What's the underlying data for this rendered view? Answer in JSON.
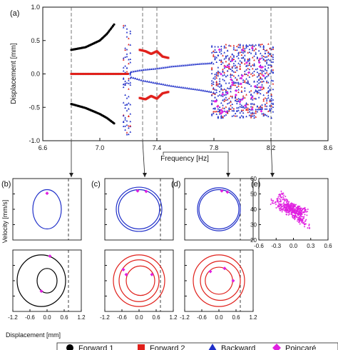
{
  "figure": {
    "panel_labels": [
      "(a)",
      "(b)",
      "(c)",
      "(d)",
      "(e)"
    ],
    "shared_xlabel": "Displacement [mm]",
    "shared_ylabel": "Velocity [mm/s]"
  },
  "legend": {
    "items": [
      {
        "label": "Forward 1",
        "marker": "circle",
        "color": "#000000"
      },
      {
        "label": "Forward 2",
        "marker": "square",
        "color": "#e0201b"
      },
      {
        "label": "Backward",
        "marker": "triangle",
        "color": "#1f2fc9"
      },
      {
        "label": "Poincaré",
        "marker": "diamond",
        "color": "#e020e0"
      }
    ]
  },
  "colors": {
    "forward1": "#000000",
    "forward2": "#e0201b",
    "backward": "#1f2fc9",
    "poincare": "#e020e0",
    "guide": "#555555"
  },
  "chart_data": [
    {
      "panel": "(a)",
      "type": "scatter",
      "title": "",
      "xlabel": "Frequency [Hz]",
      "ylabel": "Displacement [mm]",
      "xlim": [
        6.6,
        8.6
      ],
      "ylim": [
        -1.0,
        1.0
      ],
      "xticks": [
        "6.6",
        "7.0",
        "7.4",
        "7.8",
        "8.2",
        "8.6"
      ],
      "yticks": [
        "1.0",
        "0.5",
        "0.0",
        "-0.5",
        "-1.0"
      ],
      "guide_lines_hz": [
        6.8,
        7.3,
        7.4,
        8.2
      ],
      "series": [
        {
          "name": "Forward 1",
          "segments": [
            {
              "x": [
                6.8,
                6.9,
                7.0,
                7.05,
                7.1
              ],
              "y": [
                0.36,
                0.4,
                0.5,
                0.6,
                0.74
              ]
            },
            {
              "x": [
                6.8,
                6.9,
                7.0,
                7.05,
                7.1
              ],
              "y": [
                -0.45,
                -0.51,
                -0.6,
                -0.66,
                -0.74
              ]
            },
            {
              "x": [
                6.8,
                7.15
              ],
              "y": [
                0.0,
                0.0
              ]
            }
          ]
        },
        {
          "name": "Forward 2",
          "segments": [
            {
              "x": [
                7.28,
                7.32,
                7.36,
                7.4,
                7.44,
                7.48
              ],
              "y": [
                0.36,
                0.34,
                0.3,
                0.34,
                0.26,
                0.24
              ]
            },
            {
              "x": [
                7.28,
                7.32,
                7.36,
                7.4,
                7.44,
                7.48
              ],
              "y": [
                -0.36,
                -0.38,
                -0.33,
                -0.37,
                -0.29,
                -0.27
              ]
            }
          ]
        },
        {
          "name": "Backward",
          "segments": [
            {
              "x": [
                7.22,
                7.3,
                7.4,
                7.5,
                7.6,
                7.7,
                7.78
              ],
              "y": [
                0.03,
                0.06,
                0.08,
                0.11,
                0.13,
                0.15,
                0.16
              ]
            },
            {
              "x": [
                7.22,
                7.3,
                7.4,
                7.5,
                7.6,
                7.7,
                7.78
              ],
              "y": [
                -0.05,
                -0.1,
                -0.14,
                -0.18,
                -0.21,
                -0.24,
                -0.27
              ]
            }
          ],
          "bands": [
            {
              "x_range": [
                7.16,
                7.22
              ],
              "y_range": [
                -0.92,
                0.8
              ]
            },
            {
              "x_range": [
                7.78,
                8.22
              ],
              "y_range": [
                -0.66,
                0.45
              ]
            }
          ]
        }
      ]
    },
    {
      "panel": "(b)",
      "type": "line",
      "xlim": [
        -1.2,
        1.2
      ],
      "xticks": [
        "-1.2",
        "-0.6",
        "0.0",
        "0.6",
        "1.2"
      ],
      "top": {
        "ylabel": "Velocity [mm/s]",
        "yticks": [],
        "curves": [
          {
            "series": "Backward",
            "cx": 0.0,
            "rx": 0.5,
            "ry_rel": 0.32
          }
        ],
        "poincare": [
          {
            "x": 0.0,
            "y_rel": 0.26
          }
        ]
      },
      "bottom": {
        "curves": [
          {
            "series": "Forward 1",
            "cx": -0.2,
            "rx": 0.85,
            "ry_rel": 0.42
          },
          {
            "series": "Forward 1",
            "cx": 0.0,
            "rx": 0.35,
            "ry_rel": 0.2
          }
        ],
        "poincare": [
          {
            "x": 0.1,
            "y_rel": 0.4
          },
          {
            "x": -0.2,
            "y_rel": -0.17
          }
        ]
      },
      "dashed_x": 0.75
    },
    {
      "panel": "(c)",
      "type": "line",
      "xlim": [
        -1.2,
        1.2
      ],
      "xticks": [
        "-1.2",
        "-0.6",
        "0.0",
        "0.6",
        "1.2"
      ],
      "top": {
        "curves": [
          {
            "series": "Backward",
            "cx": 0.0,
            "rx": 0.8,
            "ry_rel": 0.36
          },
          {
            "series": "Backward",
            "cx": 0.0,
            "rx": 0.72,
            "ry_rel": 0.32
          }
        ],
        "poincare": [
          {
            "x": -0.05,
            "y_rel": 0.3
          },
          {
            "x": 0.25,
            "y_rel": 0.29
          }
        ]
      },
      "bottom": {
        "curves": [
          {
            "series": "Forward 2",
            "cx": 0.0,
            "rx": 0.9,
            "ry_rel": 0.42
          },
          {
            "series": "Forward 2",
            "cx": 0.0,
            "rx": 0.7,
            "ry_rel": 0.34
          },
          {
            "series": "Forward 2",
            "cx": 0.05,
            "rx": 0.5,
            "ry_rel": 0.24
          }
        ],
        "poincare": [
          {
            "x": -0.45,
            "y_rel": 0.1
          },
          {
            "x": 0.45,
            "y_rel": 0.1
          },
          {
            "x": -0.55,
            "y_rel": 0.18
          }
        ]
      },
      "dashed_x": 0.75
    },
    {
      "panel": "(d)",
      "type": "line",
      "xlim": [
        -1.2,
        1.2
      ],
      "xticks": [
        "-1.2",
        "-0.6",
        "0.0",
        "0.6",
        "1.2"
      ],
      "top": {
        "curves": [
          {
            "series": "Backward",
            "cx": 0.0,
            "rx": 0.75,
            "ry_rel": 0.35
          },
          {
            "series": "Backward",
            "cx": 0.0,
            "rx": 0.7,
            "ry_rel": 0.32
          }
        ],
        "poincare": [
          {
            "x": 0.1,
            "y_rel": 0.3
          },
          {
            "x": 0.3,
            "y_rel": 0.28
          }
        ]
      },
      "bottom": {
        "curves": [
          {
            "series": "Forward 2",
            "cx": 0.0,
            "rx": 0.9,
            "ry_rel": 0.42
          },
          {
            "series": "Forward 2",
            "cx": 0.05,
            "rx": 0.7,
            "ry_rel": 0.32
          },
          {
            "series": "Forward 2",
            "cx": 0.0,
            "rx": 0.48,
            "ry_rel": 0.22
          }
        ],
        "poincare": [
          {
            "x": -0.3,
            "y_rel": 0.15
          },
          {
            "x": 0.2,
            "y_rel": 0.2
          },
          {
            "x": 0.5,
            "y_rel": 0.0
          }
        ]
      },
      "dashed_x": 0.75
    },
    {
      "panel": "(e)",
      "type": "scatter",
      "xlim": [
        -0.6,
        0.6
      ],
      "ylim": [
        20,
        60
      ],
      "xticks": [
        "-0.6",
        "-0.3",
        "0.0",
        "0.3",
        "0.6"
      ],
      "yticks": [
        "60",
        "50",
        "40",
        "30",
        "20"
      ],
      "series": [
        {
          "name": "Poincaré",
          "clusters": [
            {
              "x_from": -0.35,
              "y_from": 45,
              "x_to": 0.15,
              "y_to": 34
            },
            {
              "x_from": -0.25,
              "y_from": 50,
              "x_to": 0.25,
              "y_to": 28
            },
            {
              "x_from": -0.1,
              "y_from": 42,
              "x_to": 0.2,
              "y_to": 38
            }
          ]
        }
      ]
    }
  ]
}
